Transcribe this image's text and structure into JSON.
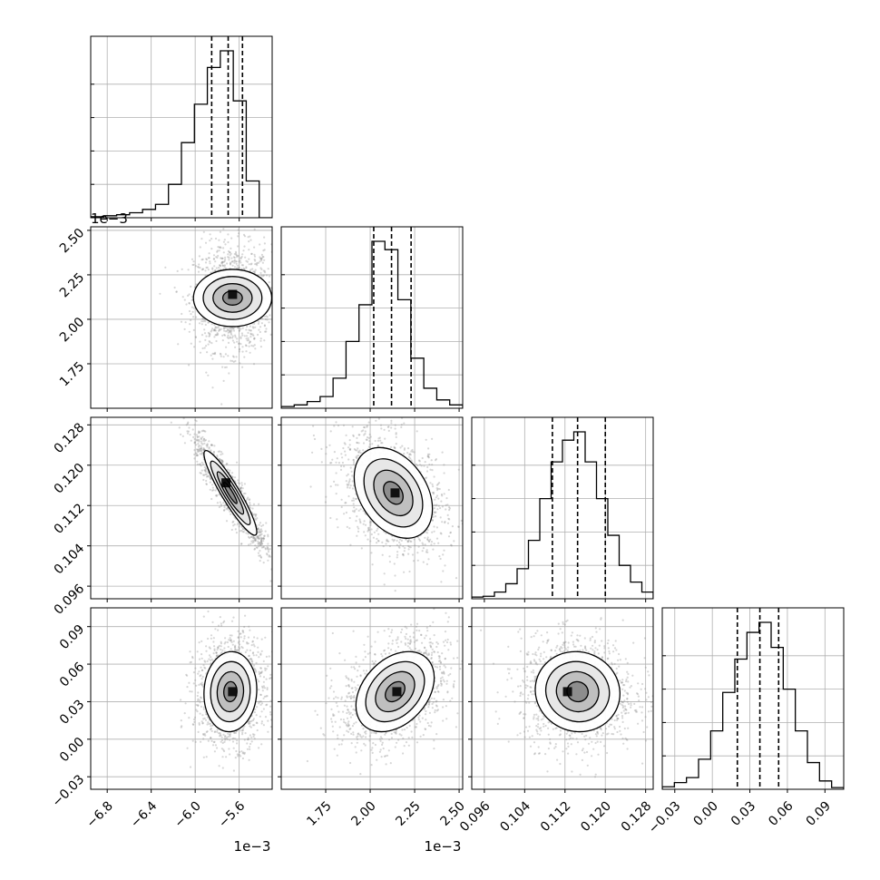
{
  "chart_data": {
    "type": "corner",
    "parameters": [
      {
        "range": [
          -6.95,
          -5.3
        ],
        "ticks": [
          "−6.8",
          "−6.4",
          "−6.0",
          "−5.6"
        ],
        "tick_values": [
          -6.8,
          -6.4,
          -6.0,
          -5.6
        ],
        "offset": "1e−3"
      },
      {
        "range": [
          1.5,
          2.52
        ],
        "ticks": [
          "1.75",
          "2.00",
          "2.25",
          "2.50"
        ],
        "tick_values": [
          1.75,
          2.0,
          2.25,
          2.5
        ],
        "offset": "1e−3"
      },
      {
        "range": [
          0.0935,
          0.1295
        ],
        "ticks": [
          "0.096",
          "0.104",
          "0.112",
          "0.120",
          "0.128"
        ],
        "tick_values": [
          0.096,
          0.104,
          0.112,
          0.12,
          0.128
        ],
        "offset": ""
      },
      {
        "range": [
          -0.04,
          0.105
        ],
        "ticks": [
          "−0.03",
          "0.00",
          "0.03",
          "0.06",
          "0.09"
        ],
        "tick_values": [
          -0.03,
          0.0,
          0.03,
          0.06,
          0.09
        ],
        "offset": ""
      }
    ],
    "quantiles": [
      [
        -5.85,
        -5.7,
        -5.57
      ],
      [
        2.02,
        2.12,
        2.23
      ],
      [
        0.1095,
        0.1145,
        0.12
      ],
      [
        0.02,
        0.038,
        0.053
      ]
    ],
    "histograms": [
      [
        0.006,
        0.012,
        0.018,
        0.03,
        0.05,
        0.08,
        0.2,
        0.45,
        0.68,
        0.9,
        1.0,
        0.7,
        0.22,
        0.0
      ],
      [
        0.01,
        0.02,
        0.04,
        0.07,
        0.18,
        0.4,
        0.62,
        1.0,
        0.95,
        0.65,
        0.3,
        0.12,
        0.05,
        0.02
      ],
      [
        0.01,
        0.015,
        0.04,
        0.09,
        0.18,
        0.35,
        0.6,
        0.82,
        0.95,
        1.0,
        0.82,
        0.6,
        0.38,
        0.2,
        0.1,
        0.04
      ],
      [
        0.015,
        0.04,
        0.07,
        0.18,
        0.35,
        0.58,
        0.78,
        0.94,
        1.0,
        0.85,
        0.6,
        0.35,
        0.16,
        0.05,
        0.01
      ]
    ],
    "pairs": [
      {
        "x": 0,
        "y": 1,
        "center": [
          -5.66,
          2.12
        ],
        "sigma": [
          0.13,
          0.11
        ],
        "rho": 0.0,
        "density_peak": [
          -5.66,
          2.14
        ]
      },
      {
        "x": 0,
        "y": 2,
        "center": [
          -5.68,
          0.1145
        ],
        "sigma": [
          0.12,
          0.0042
        ],
        "rho": -0.92,
        "density_peak": [
          -5.72,
          0.1165
        ]
      },
      {
        "x": 0,
        "y": 3,
        "center": [
          -5.68,
          0.038
        ],
        "sigma": [
          0.12,
          0.016
        ],
        "rho": 0.05,
        "density_peak": [
          -5.66,
          0.038
        ]
      },
      {
        "x": 1,
        "y": 2,
        "center": [
          2.13,
          0.1145
        ],
        "sigma": [
          0.11,
          0.0045
        ],
        "rho": -0.35,
        "density_peak": [
          2.14,
          0.1145
        ]
      },
      {
        "x": 1,
        "y": 3,
        "center": [
          2.14,
          0.038
        ],
        "sigma": [
          0.11,
          0.016
        ],
        "rho": 0.35,
        "density_peak": [
          2.15,
          0.038
        ]
      },
      {
        "x": 2,
        "y": 3,
        "center": [
          0.1145,
          0.038
        ],
        "sigma": [
          0.0042,
          0.016
        ],
        "rho": -0.05,
        "density_peak": [
          0.1125,
          0.038
        ]
      }
    ],
    "contour_levels_sigma": [
      0.5,
      1.0,
      1.5,
      2.0
    ],
    "grid": true,
    "colors": {
      "line": "#000000",
      "points": "#8c8c8c",
      "grid": "#b0b0b0"
    }
  }
}
